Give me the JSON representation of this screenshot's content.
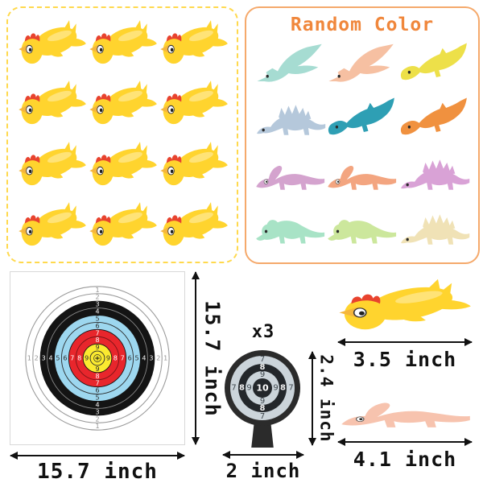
{
  "left_panel": {
    "toy_name": "slingshot-chicken",
    "border_color": "#FFD94D",
    "chicken_color": "#FFD42E",
    "comb_color": "#E8432E",
    "beak_color": "#F5B63C",
    "count": 12
  },
  "right_panel": {
    "title": "Random Color",
    "title_color": "#F0873C",
    "border_color": "#F5A96B",
    "dinos": [
      {
        "type": "ptero",
        "color": "#A6DCD2"
      },
      {
        "type": "ptero",
        "color": "#F6C0A2"
      },
      {
        "type": "dino",
        "color": "#EDE049"
      },
      {
        "type": "stego",
        "color": "#B5C8DB"
      },
      {
        "type": "dino",
        "color": "#2E9FB4"
      },
      {
        "type": "dino",
        "color": "#F0913F"
      },
      {
        "type": "para",
        "color": "#D4A3CE"
      },
      {
        "type": "para",
        "color": "#F3A580"
      },
      {
        "type": "stego",
        "color": "#D9A2D6"
      },
      {
        "type": "trike",
        "color": "#A8E3C6"
      },
      {
        "type": "trike",
        "color": "#CCE79C"
      },
      {
        "type": "stego",
        "color": "#F0E2B6"
      }
    ]
  },
  "big_target": {
    "width_label": "15.7 inch",
    "height_label": "15.7 inch",
    "ring_numbers": [
      "1",
      "2",
      "3",
      "4",
      "5",
      "6",
      "7",
      "8",
      "9"
    ],
    "colors": {
      "paper": "#FFFFFF",
      "ring_black": "#141414",
      "ring_blue": "#9DD7EF",
      "ring_red": "#E8262C",
      "ring_yellow": "#FBEA30"
    }
  },
  "small_target": {
    "quantity_label": "x3",
    "width_label": "2 inch",
    "height_label": "2.4 inch",
    "ring_numbers": [
      "7",
      "8",
      "9"
    ],
    "bull_label": "10",
    "face_color": "#CBD4DA",
    "frame_color": "#2B2B2B"
  },
  "chicken_item": {
    "size_label": "3.5 inch"
  },
  "dino_item": {
    "size_label": "4.1 inch",
    "type": "para",
    "color": "#F7C3AE"
  }
}
